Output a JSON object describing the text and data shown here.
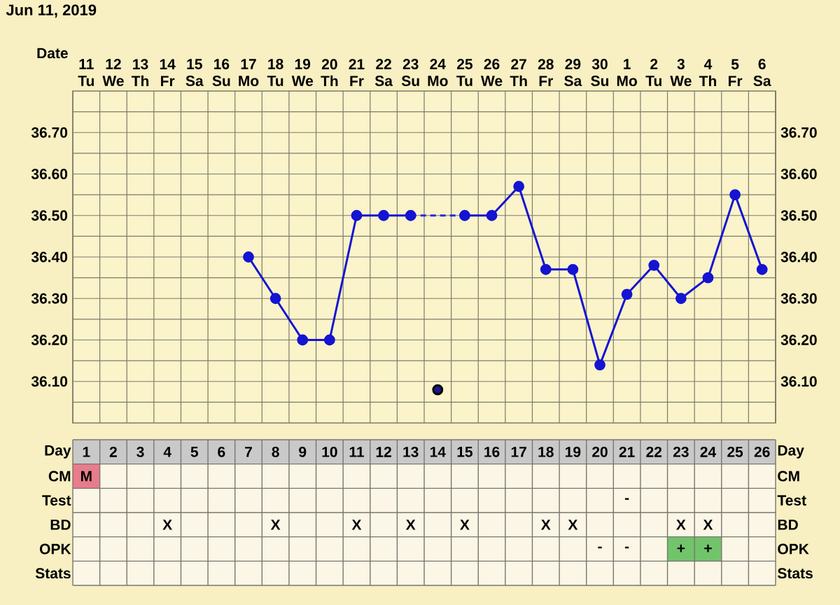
{
  "chart_data": [
    {
      "type": "line",
      "title": "Jun 11, 2019",
      "xlabel": "Date",
      "categories": [
        "11 Tu",
        "12 We",
        "13 Th",
        "14 Fr",
        "15 Sa",
        "16 Su",
        "17 Mo",
        "18 Tu",
        "19 We",
        "20 Th",
        "21 Fr",
        "22 Sa",
        "23 Su",
        "24 Mo",
        "25 Tu",
        "26 We",
        "27 Th",
        "28 Fr",
        "29 Sa",
        "30 Su",
        "1 Mo",
        "2 Tu",
        "3 We",
        "4 Th",
        "5 Fr",
        "6 Sa"
      ],
      "series": [
        {
          "color": "#1414d2",
          "values": [
            null,
            null,
            null,
            null,
            null,
            null,
            36.4,
            36.3,
            36.2,
            36.2,
            36.5,
            36.5,
            36.5,
            null,
            36.5,
            36.5,
            36.57,
            36.37,
            36.37,
            36.14,
            36.31,
            36.38,
            36.3,
            36.35,
            36.55,
            36.37
          ]
        },
        {
          "color": "#2a2ae0",
          "line_style": "dashed",
          "marker": "none",
          "values": [
            null,
            null,
            null,
            null,
            null,
            null,
            null,
            null,
            null,
            null,
            null,
            null,
            36.5,
            36.5,
            36.5,
            null,
            null,
            null,
            null,
            null,
            null,
            null,
            null,
            null,
            null,
            null
          ]
        },
        {
          "type": "scatter",
          "color": "#1a1a8a",
          "values": [
            null,
            null,
            null,
            null,
            null,
            null,
            null,
            null,
            null,
            null,
            null,
            null,
            null,
            36.08,
            null,
            null,
            null,
            null,
            null,
            null,
            null,
            null,
            null,
            null,
            null,
            null
          ]
        }
      ],
      "ylim": [
        36.0,
        36.8
      ],
      "yticks": [
        {
          "value": 36.05,
          "label": null
        },
        {
          "value": 36.1,
          "label": "36.10"
        },
        {
          "value": 36.15,
          "label": null
        },
        {
          "value": 36.2,
          "label": "36.20"
        },
        {
          "value": 36.25,
          "label": null
        },
        {
          "value": 36.3,
          "label": "36.30"
        },
        {
          "value": 36.35,
          "label": null
        },
        {
          "value": 36.4,
          "label": "36.40"
        },
        {
          "value": 36.45,
          "label": null
        },
        {
          "value": 36.5,
          "label": "36.50"
        },
        {
          "value": 36.55,
          "label": null
        },
        {
          "value": 36.6,
          "label": "36.60"
        },
        {
          "value": 36.65,
          "label": null
        },
        {
          "value": 36.7,
          "label": "36.70"
        },
        {
          "value": 36.75,
          "label": null
        }
      ],
      "y2lim": [
        36.0,
        36.8
      ],
      "y2ticks": [
        {
          "value": 36.05,
          "label": null
        },
        {
          "value": 36.1,
          "label": "36.10"
        },
        {
          "value": 36.15,
          "label": null
        },
        {
          "value": 36.2,
          "label": "36.20"
        },
        {
          "value": 36.25,
          "label": null
        },
        {
          "value": 36.3,
          "label": "36.30"
        },
        {
          "value": 36.35,
          "label": null
        },
        {
          "value": 36.4,
          "label": "36.40"
        },
        {
          "value": 36.45,
          "label": null
        },
        {
          "value": 36.5,
          "label": "36.50"
        },
        {
          "value": 36.55,
          "label": null
        },
        {
          "value": 36.6,
          "label": "36.60"
        },
        {
          "value": 36.65,
          "label": null
        },
        {
          "value": 36.7,
          "label": "36.70"
        },
        {
          "value": 36.75,
          "label": null
        }
      ],
      "grid": true,
      "marker": "circle"
    },
    {
      "type": "heatmap",
      "xlabel": "Day",
      "cells": [
        [
          null,
          null,
          null,
          null,
          null,
          null,
          null,
          null,
          null,
          null,
          null,
          null,
          null,
          null,
          null,
          null,
          null,
          null,
          null,
          null,
          null,
          null,
          null,
          null,
          null,
          null
        ],
        [
          null,
          null,
          null,
          null,
          null,
          null,
          null,
          null,
          null,
          null,
          null,
          null,
          null,
          null,
          null,
          null,
          null,
          null,
          null,
          null,
          null,
          null,
          null,
          null,
          null,
          null
        ],
        [
          null,
          null,
          null,
          null,
          null,
          null,
          null,
          null,
          null,
          null,
          null,
          null,
          null,
          null,
          null,
          null,
          null,
          null,
          null,
          null,
          null,
          null,
          null,
          null,
          null,
          null
        ],
        [
          null,
          null,
          null,
          null,
          null,
          null,
          null,
          null,
          null,
          null,
          null,
          null,
          null,
          null,
          null,
          null,
          null,
          null,
          null,
          null,
          null,
          null,
          null,
          null,
          null,
          null
        ],
        [
          null,
          null,
          null,
          null,
          null,
          null,
          null,
          null,
          null,
          null,
          null,
          null,
          null,
          null,
          null,
          null,
          null,
          null,
          null,
          null,
          null,
          null,
          null,
          null,
          null,
          null
        ]
      ],
      "categories": [
        "1",
        "2",
        "3",
        "4",
        "5",
        "6",
        "7",
        "8",
        "9",
        "10",
        "11",
        "12",
        "13",
        "14",
        "15",
        "16",
        "17",
        "18",
        "19",
        "20",
        "21",
        "22",
        "23",
        "24",
        "25",
        "26"
      ],
      "y_categories": [
        "CM",
        "Test",
        "BD",
        "OPK",
        "Stats"
      ],
      "y2_categories": [
        "CM",
        "Test",
        "BD",
        "OPK",
        "Stats"
      ],
      "cell_labels": [
        [
          "M",
          null,
          null,
          null,
          null,
          null,
          null,
          null,
          null,
          null,
          null,
          null,
          null,
          null,
          null,
          null,
          null,
          null,
          null,
          null,
          null,
          null,
          null,
          null,
          null,
          null
        ],
        [
          null,
          null,
          null,
          null,
          null,
          null,
          null,
          null,
          null,
          null,
          null,
          null,
          null,
          null,
          null,
          null,
          null,
          null,
          null,
          null,
          "-",
          null,
          null,
          null,
          null,
          null
        ],
        [
          null,
          null,
          null,
          "X",
          null,
          null,
          null,
          "X",
          null,
          null,
          "X",
          null,
          "X",
          null,
          "X",
          null,
          null,
          "X",
          "X",
          null,
          null,
          null,
          "X",
          "X",
          null,
          null
        ],
        [
          null,
          null,
          null,
          null,
          null,
          null,
          null,
          null,
          null,
          null,
          null,
          null,
          null,
          null,
          null,
          null,
          null,
          null,
          null,
          "-",
          "-",
          null,
          "+",
          "+",
          null,
          null
        ],
        [
          null,
          null,
          null,
          null,
          null,
          null,
          null,
          null,
          null,
          null,
          null,
          null,
          null,
          null,
          null,
          null,
          null,
          null,
          null,
          null,
          null,
          null,
          null,
          null,
          null,
          null
        ]
      ],
      "colors": [
        [
          "#e87c8c",
          null,
          null,
          null,
          null,
          null,
          null,
          null,
          null,
          null,
          null,
          null,
          null,
          null,
          null,
          null,
          null,
          null,
          null,
          null,
          null,
          null,
          null,
          null,
          null,
          null
        ],
        [
          null,
          null,
          null,
          null,
          null,
          null,
          null,
          null,
          null,
          null,
          null,
          null,
          null,
          null,
          null,
          null,
          null,
          null,
          null,
          null,
          null,
          null,
          null,
          null,
          null,
          null
        ],
        [
          null,
          null,
          null,
          null,
          null,
          null,
          null,
          null,
          null,
          null,
          null,
          null,
          null,
          null,
          null,
          null,
          null,
          null,
          null,
          null,
          null,
          null,
          null,
          null,
          null,
          null
        ],
        [
          null,
          null,
          null,
          null,
          null,
          null,
          null,
          null,
          null,
          null,
          null,
          null,
          null,
          null,
          null,
          null,
          null,
          null,
          null,
          null,
          null,
          null,
          "#72c46c",
          "#72c46c",
          null,
          null
        ],
        [
          null,
          null,
          null,
          null,
          null,
          null,
          null,
          null,
          null,
          null,
          null,
          null,
          null,
          null,
          null,
          null,
          null,
          null,
          null,
          null,
          null,
          null,
          null,
          null,
          null,
          null
        ]
      ]
    }
  ]
}
